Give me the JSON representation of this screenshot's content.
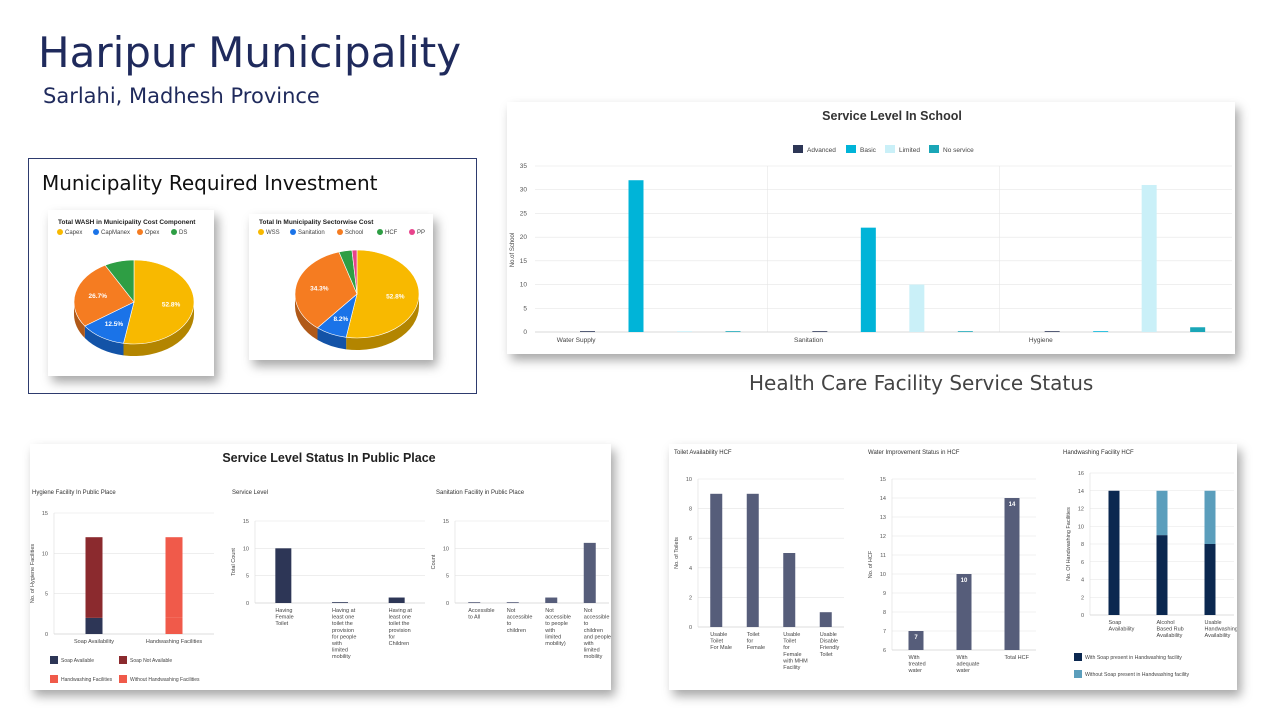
{
  "header": {
    "title": "Haripur Municipality",
    "subtitle": "Sarlahi, Madhesh Province"
  },
  "investment": {
    "title": "Municipality Required Investment"
  },
  "hcf_heading": "Health Care Facility Service Status",
  "colors": {
    "navy": "#2d3656",
    "cyan": "#00b4d8",
    "light_cyan": "#caf0f8",
    "teal": "#1aa6b7",
    "dark_red": "#8b2a2e",
    "red": "#f05a4a",
    "slate": "#565d7a",
    "dark_navy": "#0b2850",
    "steel": "#5b9ebc",
    "pale_blue": "#a6d2e3"
  },
  "chart_data": [
    {
      "id": "pie-cost-component",
      "type": "pie",
      "title": "Total WASH in Municipality Cost Component",
      "legend": [
        "Capex",
        "CapManex",
        "Opex",
        "DS"
      ],
      "values": [
        52.8,
        12.5,
        26.7,
        8.0
      ],
      "labels": [
        "52.8%",
        "12.5%",
        "26.7%",
        ""
      ],
      "colors": [
        "#f8b900",
        "#1a73e8",
        "#f57c21",
        "#2e9e44"
      ],
      "legend_placement": "top"
    },
    {
      "id": "pie-sectorwise",
      "type": "pie",
      "title": "Total In Municipality Sectorwise Cost",
      "legend": [
        "WSS",
        "Sanitation",
        "School",
        "HCF",
        "PP"
      ],
      "values": [
        52.8,
        8.2,
        34.3,
        3.4,
        1.3
      ],
      "labels": [
        "52.8%",
        "8.2%",
        "34.3%",
        "",
        ""
      ],
      "colors": [
        "#f8b900",
        "#1a73e8",
        "#f57c21",
        "#2e9e44",
        "#e8438c"
      ],
      "legend_placement": "top"
    },
    {
      "id": "school-service-level",
      "type": "bar",
      "title": "Service Level In School",
      "categories": [
        "Water Supply",
        "Sanitation",
        "Hygiene"
      ],
      "series": [
        {
          "name": "Advanced",
          "values": [
            0,
            0,
            0
          ]
        },
        {
          "name": "Basic",
          "values": [
            32,
            22,
            0
          ]
        },
        {
          "name": "Limited",
          "values": [
            0,
            10,
            31
          ]
        },
        {
          "name": "No service",
          "values": [
            0,
            0,
            1
          ]
        }
      ],
      "ylabel": "No.of School",
      "yticks": [
        "0",
        "5",
        "10",
        "15",
        "20",
        "25",
        "30",
        "35"
      ],
      "ylim": [
        0,
        35
      ],
      "grid": true,
      "legend_placement": "top"
    },
    {
      "id": "public-place",
      "type": "bar",
      "panel_title": "Service Level Status In Public Place",
      "subcharts": [
        {
          "id": "hygiene-public",
          "type": "stacked-bar",
          "title": "Hygiene Facility In Public Place",
          "categories": [
            "Soap Availability",
            "Handwashing Facilities"
          ],
          "series": [
            {
              "name": "Soap Available",
              "values": [
                2,
                0
              ]
            },
            {
              "name": "Soap Not Available",
              "values": [
                10,
                0
              ]
            },
            {
              "name": "Handwashing Facilities",
              "values": [
                0,
                2
              ]
            },
            {
              "name": "Without Handwashing Facilities",
              "values": [
                0,
                10
              ]
            }
          ],
          "ylabel": "No. of Hygiene Facilities",
          "yticks": [
            "0",
            "5",
            "10",
            "15"
          ],
          "ylim": [
            0,
            15
          ]
        },
        {
          "id": "service-level-public",
          "type": "bar",
          "title": "Service Level",
          "categories": [
            "Having Female Toilet",
            "Having at least one toilet the provision for people with limited mobility",
            "Having at least one toilet the provision for Children"
          ],
          "values": [
            10,
            0,
            1
          ],
          "ylabel": "Total Count",
          "yticks": [
            "0",
            "5",
            "10",
            "15"
          ],
          "ylim": [
            0,
            15
          ]
        },
        {
          "id": "sanitation-public",
          "type": "bar",
          "title": "Sanitation Facility in Public Place",
          "categories": [
            "Accessible to All",
            "Not accessible to children",
            "Not accessible to people with limited mobility)",
            "Not accessible to children and people with limited mobility"
          ],
          "values": [
            0,
            0,
            1,
            11
          ],
          "ylabel": "Count",
          "yticks": [
            "0",
            "5",
            "10",
            "15"
          ],
          "ylim": [
            0,
            15
          ]
        }
      ]
    },
    {
      "id": "hcf",
      "type": "bar",
      "subcharts": [
        {
          "id": "toilet-hcf",
          "type": "bar",
          "title": "Toilet Availability HCF",
          "categories": [
            "Usable Toilet For Male",
            "Toilet for Female",
            "Usable Toilet for Female with MHM Facility",
            "Usable Disable Friendly Toilet"
          ],
          "values": [
            9,
            9,
            5,
            1
          ],
          "ylabel": "No. of Toilets",
          "yticks": [
            "0",
            "2",
            "4",
            "6",
            "8",
            "10"
          ],
          "ylim": [
            0,
            10
          ]
        },
        {
          "id": "water-hcf",
          "type": "bar",
          "title": "Water Improvement Status in HCF",
          "categories": [
            "With treated water",
            "With adequate water",
            "Total HCF"
          ],
          "values": [
            7,
            10,
            14
          ],
          "data_labels": [
            "7",
            "10",
            "14"
          ],
          "ylabel": "No. of HCF",
          "yticks": [
            "6",
            "7",
            "8",
            "9",
            "10",
            "11",
            "12",
            "13",
            "14",
            "15"
          ],
          "ylim": [
            6,
            15
          ]
        },
        {
          "id": "handwashing-hcf",
          "type": "stacked-bar",
          "title": "Handwashing Facility HCF",
          "categories": [
            "Soap Availability",
            "Alcohol Based Rub Availability",
            "Usable Handwashing Availability"
          ],
          "series": [
            {
              "name": "With Soap present in Handwashing facility",
              "values": [
                14,
                9,
                8
              ]
            },
            {
              "name": "Without Soap present in Handwashing facility",
              "values": [
                0,
                5,
                6
              ]
            }
          ],
          "ylabel": "No. Of Handwashing Facilities",
          "yticks": [
            "0",
            "2",
            "4",
            "6",
            "8",
            "10",
            "12",
            "14",
            "16"
          ],
          "ylim": [
            0,
            16
          ]
        }
      ]
    }
  ]
}
